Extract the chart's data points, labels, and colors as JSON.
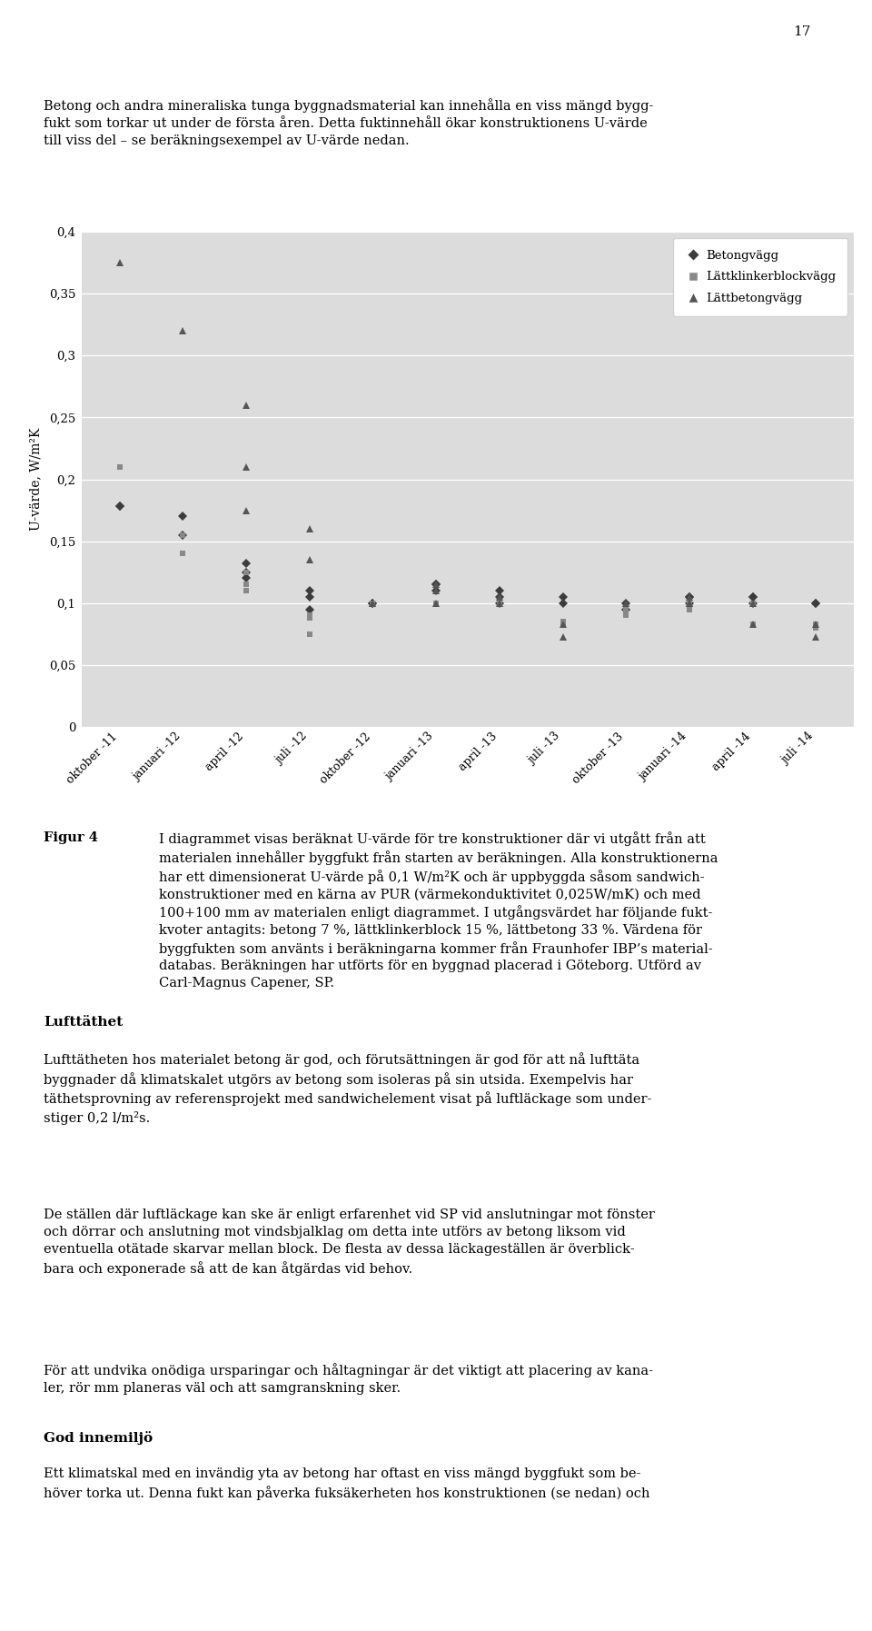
{
  "ylabel": "U-värde, W/m²K",
  "ylim": [
    0,
    0.4
  ],
  "yticks": [
    0,
    0.05,
    0.1,
    0.15,
    0.2,
    0.25,
    0.3,
    0.35,
    0.4
  ],
  "ytick_labels": [
    "0",
    "0,05",
    "0,1",
    "0,15",
    "0,2",
    "0,25",
    "0,3",
    "0,35",
    "0,4"
  ],
  "x_labels": [
    "oktober -11",
    "januari -12",
    "april -12",
    "juli -12",
    "oktober -12",
    "januari -13",
    "april -13",
    "juli -13",
    "oktober -13",
    "januari -14",
    "april -14",
    "juli -14"
  ],
  "betong_data": [
    [
      0,
      0.178
    ],
    [
      0,
      0.178
    ],
    [
      1,
      0.17
    ],
    [
      1,
      0.155
    ],
    [
      2,
      0.132
    ],
    [
      2,
      0.125
    ],
    [
      2,
      0.12
    ],
    [
      3,
      0.11
    ],
    [
      3,
      0.105
    ],
    [
      3,
      0.095
    ],
    [
      4,
      0.1
    ],
    [
      4,
      0.1
    ],
    [
      5,
      0.115
    ],
    [
      5,
      0.115
    ],
    [
      5,
      0.11
    ],
    [
      6,
      0.11
    ],
    [
      6,
      0.105
    ],
    [
      6,
      0.1
    ],
    [
      7,
      0.105
    ],
    [
      7,
      0.1
    ],
    [
      8,
      0.1
    ],
    [
      8,
      0.095
    ],
    [
      9,
      0.105
    ],
    [
      9,
      0.105
    ],
    [
      9,
      0.1
    ],
    [
      10,
      0.105
    ],
    [
      10,
      0.105
    ],
    [
      10,
      0.1
    ],
    [
      11,
      0.1
    ],
    [
      11,
      0.1
    ]
  ],
  "lattklinkBlock_data": [
    [
      0,
      0.21
    ],
    [
      1,
      0.155
    ],
    [
      1,
      0.14
    ],
    [
      2,
      0.125
    ],
    [
      2,
      0.115
    ],
    [
      2,
      0.11
    ],
    [
      3,
      0.09
    ],
    [
      3,
      0.088
    ],
    [
      3,
      0.075
    ],
    [
      4,
      0.1
    ],
    [
      4,
      0.1
    ],
    [
      5,
      0.1
    ],
    [
      5,
      0.1
    ],
    [
      5,
      0.1
    ],
    [
      6,
      0.1
    ],
    [
      6,
      0.1
    ],
    [
      7,
      0.085
    ],
    [
      7,
      0.082
    ],
    [
      8,
      0.095
    ],
    [
      8,
      0.09
    ],
    [
      9,
      0.1
    ],
    [
      9,
      0.1
    ],
    [
      9,
      0.095
    ],
    [
      10,
      0.1
    ],
    [
      10,
      0.1
    ],
    [
      10,
      0.083
    ],
    [
      11,
      0.083
    ],
    [
      11,
      0.08
    ]
  ],
  "lattbetong_data": [
    [
      0,
      0.375
    ],
    [
      1,
      0.32
    ],
    [
      2,
      0.26
    ],
    [
      2,
      0.21
    ],
    [
      2,
      0.175
    ],
    [
      3,
      0.16
    ],
    [
      3,
      0.135
    ],
    [
      4,
      0.1
    ],
    [
      4,
      0.1
    ],
    [
      5,
      0.115
    ],
    [
      5,
      0.11
    ],
    [
      5,
      0.1
    ],
    [
      6,
      0.105
    ],
    [
      6,
      0.1
    ],
    [
      7,
      0.083
    ],
    [
      7,
      0.073
    ],
    [
      8,
      0.1
    ],
    [
      9,
      0.105
    ],
    [
      9,
      0.1
    ],
    [
      9,
      0.1
    ],
    [
      10,
      0.1
    ],
    [
      10,
      0.083
    ],
    [
      11,
      0.083
    ],
    [
      11,
      0.073
    ]
  ],
  "background_color": "#dcdcdc",
  "betong_color": "#3c3c3c",
  "lattklinkBlock_color": "#888888",
  "lattbetong_color": "#555555",
  "legend_labels": [
    "Betongvägg",
    "Lättklinkerblockvägg",
    "Lättbetongvägg"
  ],
  "page_number": "17",
  "body_text_1": "Betong och andra mineraliska tunga byggnadsmaterial kan innehålla en viss mängd bygg-\nfukt som torkar ut under de första åren. Detta fuktinnehåll ökar konstruktionens U-värde\ntill viss del – se beräkningsexempel av U-värde nedan.",
  "caption_label": "Figur 4",
  "caption_text": "I diagrammet visas beräknat U-värde för tre konstruktioner där vi utgått från att\nmaterialen innehåller byggfukt från starten av beräkningen. Alla konstruktionerna\nhar ett dimensionerat U-värde på 0,1 W/m²K och är uppbyggda såsom sandwich-\nkonstruktioner med en kärna av PUR (värmekonduktivitet 0,025W/mK) och med\n100+100 mm av materialen enligt diagrammet. I utgångsvärdet har följande fukt-\nkvoter antagits: betong 7 %, lättklinkerblock 15 %, lättbetong 33 %. Värdena för\nbyggfukten som använts i beräkningarna kommer från Fraunhofer IBP’s material-\ndatabas. Beräkningen har utförts för en byggnad placerad i Göteborg. Utförd av\nCarl-Magnus Capener, SP.",
  "section_title_1": "Lufttäthet",
  "section_text_1": "Lufttätheten hos materialet betong är god, och förutsättningen är god för att nå lufttäta\nbyggnader då klimatskalet utgörs av betong som isoleras på sin utsida. Exempelvis har\ntäthetsprovning av referensprojekt med sandwichelement visat på luftläckage som under-\nstiger 0,2 l/m²s.",
  "section_text_2": "De ställen där luftläckage kan ske är enligt erfarenhet vid SP vid anslutningar mot fönster\noch dörrar och anslutning mot vindsbjalklag om detta inte utförs av betong liksom vid\neventuella otätade skarvar mellan block. De flesta av dessa läckageställen är överblick-\nbara och exponerade så att de kan åtgärdas vid behov.",
  "section_text_3": "För att undvika onödiga ursparingar och håltagningar är det viktigt att placering av kana-\nler, rör mm planeras väl och att samgranskning sker.",
  "section_title_2": "God innemiljö",
  "section_text_4": "Ett klimatskal med en invändig yta av betong har oftast en viss mängd byggfukt som be-\nhöver torka ut. Denna fukt kan påverka fuksäkerheten hos konstruktionen (se nedan) och"
}
